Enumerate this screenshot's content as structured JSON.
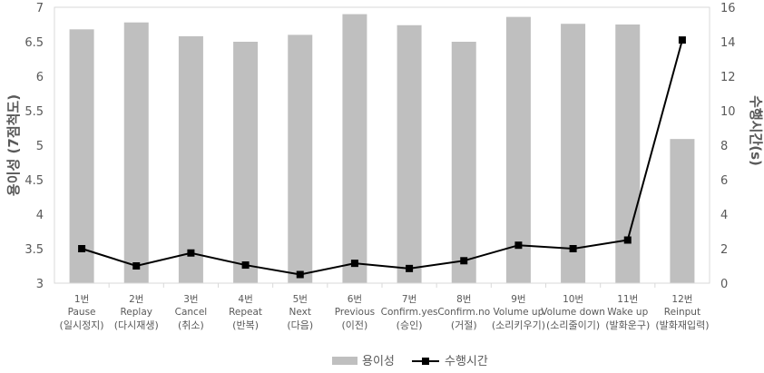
{
  "chart_data": {
    "type": "bar",
    "title": "",
    "categories": [
      {
        "num": "1번",
        "name": "Pause",
        "kr": "(일시정지)"
      },
      {
        "num": "2번",
        "name": "Replay",
        "kr": "(다시재생)"
      },
      {
        "num": "3번",
        "name": "Cancel",
        "kr": "(취소)"
      },
      {
        "num": "4번",
        "name": "Repeat",
        "kr": "(반복)"
      },
      {
        "num": "5번",
        "name": "Next",
        "kr": "(다음)"
      },
      {
        "num": "6번",
        "name": "Previous",
        "kr": "(이전)"
      },
      {
        "num": "7번",
        "name": "Confirm.yes",
        "kr": "(승인)"
      },
      {
        "num": "8번",
        "name": "Confirm.no",
        "kr": "(거절)"
      },
      {
        "num": "9번",
        "name": "Volume up",
        "kr": "(소리키우기)"
      },
      {
        "num": "10번",
        "name": "Volume down",
        "kr": "(소리줄이기)"
      },
      {
        "num": "11번",
        "name": "Wake up",
        "kr": "(발화운구)"
      },
      {
        "num": "12번",
        "name": "Reinput",
        "kr": "(발화재입력)"
      }
    ],
    "series": [
      {
        "name": "용이성",
        "type": "bar",
        "axis": "left",
        "color": "#bfbfbf",
        "values": [
          6.68,
          6.78,
          6.58,
          6.5,
          6.6,
          6.9,
          6.74,
          6.5,
          6.86,
          6.76,
          6.75,
          5.09
        ]
      },
      {
        "name": "수행시간",
        "type": "line",
        "axis": "right",
        "color": "#000000",
        "marker": "square",
        "values": [
          2.0,
          1.0,
          1.75,
          1.05,
          0.5,
          1.15,
          0.85,
          1.3,
          2.2,
          2.0,
          2.5,
          14.1
        ]
      }
    ],
    "ylabel_left": "용이성 (7점척도)",
    "ylabel_right": "수행시간(s)",
    "ylim_left": [
      3,
      7
    ],
    "yticks_left": [
      "3",
      "3.5",
      "4",
      "4.5",
      "5",
      "5.5",
      "6",
      "6.5",
      "7"
    ],
    "ylim_right": [
      0,
      16
    ],
    "yticks_right": [
      "0",
      "2",
      "4",
      "6",
      "8",
      "10",
      "12",
      "14",
      "16"
    ],
    "grid": false,
    "legend_position": "bottom"
  }
}
